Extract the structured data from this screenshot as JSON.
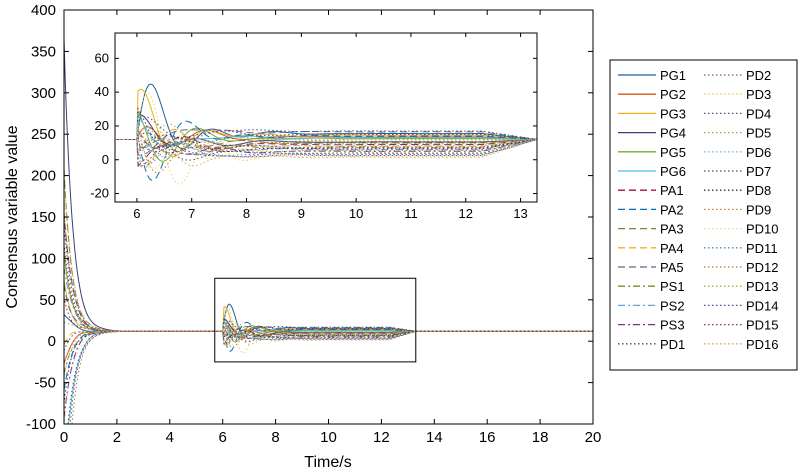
{
  "chart_data": {
    "type": "line",
    "xlabel": "Time/s",
    "ylabel": "Consensus variable value",
    "xlim": [
      0,
      20
    ],
    "ylim": [
      -100,
      400
    ],
    "xticks": [
      "0",
      "2",
      "4",
      "6",
      "8",
      "10",
      "12",
      "14",
      "16",
      "18",
      "20"
    ],
    "yticks": [
      "400",
      "350",
      "300",
      "250",
      "200",
      "150",
      "100",
      "50",
      "0",
      "-50",
      "-100"
    ],
    "consensus_value": 12,
    "zoom_box": {
      "x": [
        5.7,
        13.3
      ],
      "y": [
        -25,
        76
      ]
    },
    "inset": {
      "xlim": [
        5.6,
        13.3
      ],
      "ylim": [
        -25,
        75
      ],
      "xticks": [
        "6",
        "7",
        "8",
        "9",
        "10",
        "11",
        "12",
        "13"
      ],
      "yticks": [
        "60",
        "40",
        "20",
        "0",
        "-20"
      ]
    },
    "legend_position": "right",
    "series": [
      {
        "name": "PG1",
        "color": "#1f5f9f",
        "style": "solid",
        "offset": 3.5,
        "peak": 52
      },
      {
        "name": "PG2",
        "color": "#d9541a",
        "style": "solid",
        "offset": 1.5,
        "peak": 30
      },
      {
        "name": "PG3",
        "color": "#e8b21a",
        "style": "solid",
        "offset": 2.5,
        "peak": 40
      },
      {
        "name": "PG4",
        "color": "#3b3f7a",
        "style": "solid",
        "offset": -1.5,
        "peak": 28
      },
      {
        "name": "PG5",
        "color": "#76ac30",
        "style": "solid",
        "offset": 0.5,
        "peak": 36
      },
      {
        "name": "PG6",
        "color": "#4dbeee",
        "style": "solid",
        "offset": 1.0,
        "peak": 20
      },
      {
        "name": "PA1",
        "color": "#a2142f",
        "style": "dash",
        "offset": -3.0,
        "peak": 25
      },
      {
        "name": "PA2",
        "color": "#0072bd",
        "style": "dash",
        "offset": 2.0,
        "peak": 45
      },
      {
        "name": "PA3",
        "color": "#8c7a3a",
        "style": "dash",
        "offset": -2.0,
        "peak": 22
      },
      {
        "name": "PA4",
        "color": "#edb120",
        "style": "dash",
        "offset": -4.0,
        "peak": 32
      },
      {
        "name": "PA5",
        "color": "#5a6a8a",
        "style": "dash",
        "offset": 4.5,
        "peak": 18
      },
      {
        "name": "PS1",
        "color": "#7e8a2a",
        "style": "dashdot",
        "offset": -5.0,
        "peak": 24
      },
      {
        "name": "PS2",
        "color": "#6aa0d8",
        "style": "dashdot",
        "offset": -6.0,
        "peak": 16
      },
      {
        "name": "PS3",
        "color": "#7e2f8e",
        "style": "dashdot",
        "offset": -7.0,
        "peak": 26
      },
      {
        "name": "PD1",
        "color": "#3f4a6a",
        "style": "dot",
        "offset": -8.0,
        "peak": 20
      },
      {
        "name": "PD2",
        "color": "#8a5a7a",
        "style": "dot",
        "offset": -9.0,
        "peak": 22
      },
      {
        "name": "PD3",
        "color": "#f0d060",
        "style": "dot",
        "offset": -10.0,
        "peak": 68
      },
      {
        "name": "PD4",
        "color": "#4a4a7a",
        "style": "dot",
        "offset": 5.0,
        "peak": 18
      },
      {
        "name": "PD5",
        "color": "#b0a040",
        "style": "dot",
        "offset": -2.5,
        "peak": 28
      },
      {
        "name": "PD6",
        "color": "#8ab8e0",
        "style": "dot",
        "offset": -3.5,
        "peak": 20
      },
      {
        "name": "PD7",
        "color": "#5a3a6a",
        "style": "dot",
        "offset": -4.5,
        "peak": 24
      },
      {
        "name": "PD8",
        "color": "#2a3a5a",
        "style": "dot",
        "offset": -5.5,
        "peak": 20
      },
      {
        "name": "PD9",
        "color": "#c08a2a",
        "style": "dot",
        "offset": -6.5,
        "peak": 30
      },
      {
        "name": "PD10",
        "color": "#e8d890",
        "style": "dot",
        "offset": -7.5,
        "peak": 40
      },
      {
        "name": "PD11",
        "color": "#5a8ab0",
        "style": "dot",
        "offset": -8.5,
        "peak": 22
      },
      {
        "name": "PD12",
        "color": "#b07a2a",
        "style": "dot",
        "offset": -1.0,
        "peak": 26
      },
      {
        "name": "PD13",
        "color": "#a0b040",
        "style": "dot",
        "offset": 0.0,
        "peak": 34
      },
      {
        "name": "PD14",
        "color": "#3a5a9a",
        "style": "dot",
        "offset": -9.5,
        "peak": 20
      },
      {
        "name": "PD15",
        "color": "#8a2a4a",
        "style": "dot",
        "offset": 3.0,
        "peak": 22
      },
      {
        "name": "PD16",
        "color": "#d8b060",
        "style": "dot",
        "offset": -10.5,
        "peak": 30
      }
    ]
  }
}
